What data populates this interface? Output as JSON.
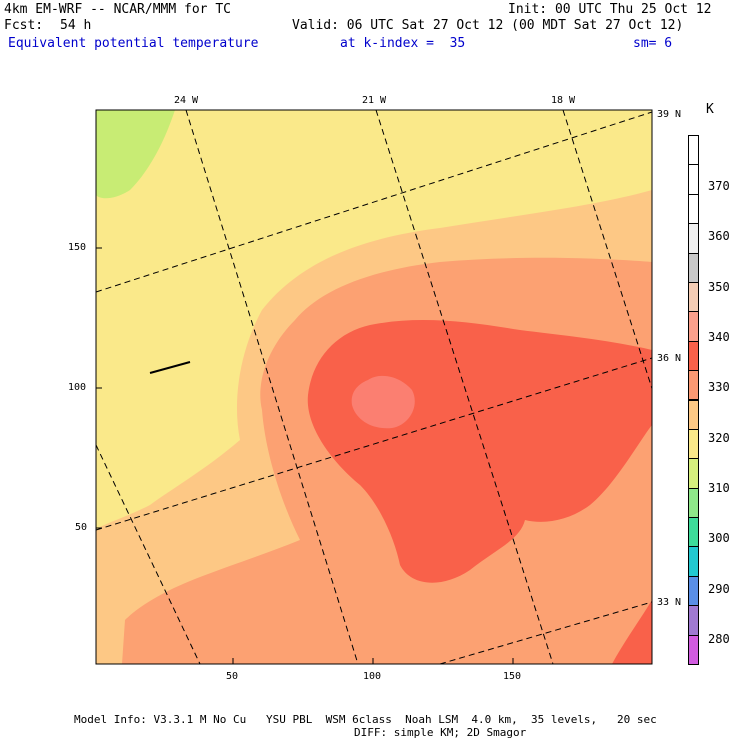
{
  "header": {
    "model": "4km EM-WRF -- NCAR/MMM for TC",
    "init": "Init: 00 UTC Thu 25 Oct 12",
    "fcst_label": "Fcst:",
    "fcst_value": "54 h",
    "valid": "Valid: 06 UTC Sat 27 Oct 12 (00 MDT Sat 27 Oct 12)",
    "field": "Equivalent potential temperature",
    "level": "at k-index =  35",
    "smoothing": "sm= 6"
  },
  "map": {
    "lon_labels": [
      "24 W",
      "21 W",
      "18 W"
    ],
    "lat_labels": [
      "39 N",
      "36 N",
      "33 N"
    ],
    "y_ticks": [
      "150",
      "100",
      "50"
    ],
    "x_ticks": [
      "50",
      "100",
      "150"
    ],
    "fill_colors": {
      "band_320": "#fae98a",
      "band_330": "#fdc885",
      "band_335": "#fca172",
      "band_340": "#f9614a",
      "band_345": "#fb7f71",
      "band_315": "#c8ec74"
    }
  },
  "colorbar": {
    "unit": "K",
    "labels": [
      "370",
      "360",
      "350",
      "340",
      "330",
      "320",
      "310",
      "300",
      "290",
      "280"
    ],
    "swatches": [
      "#ffffff",
      "#ffffff",
      "#ffffff",
      "#f0f0f0",
      "#c8c8c8",
      "#f4cdb5",
      "#fba08c",
      "#f9614a",
      "#fb9973",
      "#fdc885",
      "#fae98a",
      "#d6f07e",
      "#8fe88a",
      "#3ddc9a",
      "#22c8d0",
      "#5a8fe6",
      "#a07ad2",
      "#d25ce0"
    ]
  },
  "footer": {
    "line1": "Model Info: V3.3.1 M No Cu   YSU PBL  WSM 6class  Noah LSM  4.0 km,  35 levels,   20 sec",
    "line2": "DIFF: simple KM; 2D Smagor"
  }
}
